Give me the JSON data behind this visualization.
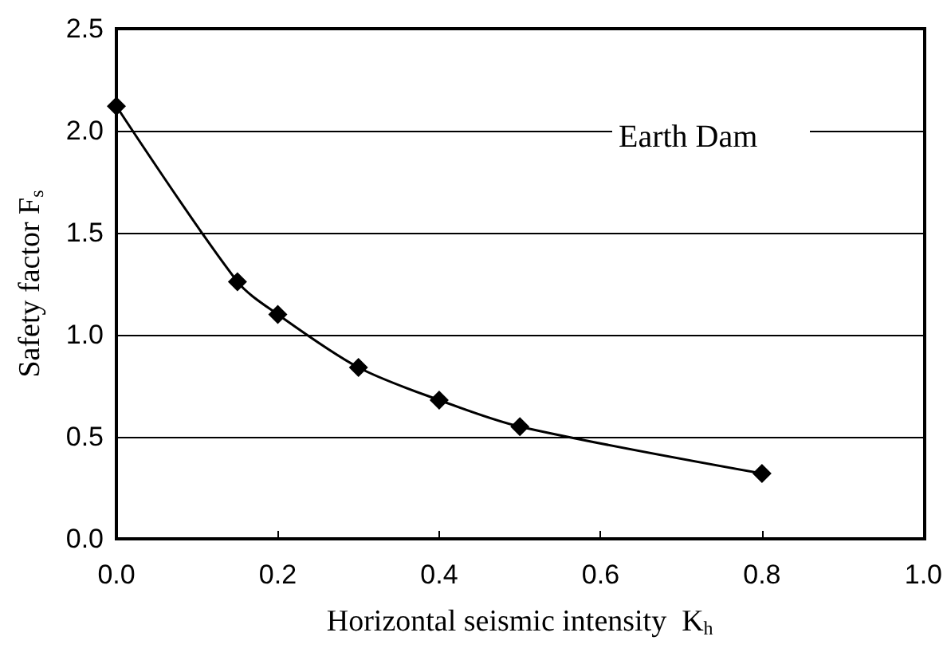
{
  "chart_data": {
    "type": "line",
    "xlabel": "Horizontal seismic intensity  K$_{h}$",
    "ylabel": "Safety factor F$_{s}$",
    "x": [
      0,
      0.15,
      0.2,
      0.3,
      0.4,
      0.5,
      0.8
    ],
    "series": [
      {
        "color": "#000000",
        "values": [
          2.12,
          1.26,
          1.1,
          0.84,
          0.68,
          0.55,
          0.32
        ]
      }
    ],
    "xlim": [
      0,
      1
    ],
    "xticks": [
      {
        "value": 0,
        "label": "0.0"
      },
      0.2,
      0.4,
      0.6,
      0.8,
      {
        "value": 1,
        "label": "1.0"
      }
    ],
    "ylim": [
      0,
      2.5
    ],
    "yticks": [
      {
        "value": 0,
        "label": "0.0"
      },
      0.5,
      {
        "value": 1,
        "label": "1.0"
      },
      1.5,
      {
        "value": 2,
        "label": "2.0"
      },
      2.5
    ],
    "grid": "y",
    "marker": "diamond",
    "line_style": "solid",
    "annotations": [
      "Earth Dam"
    ]
  }
}
